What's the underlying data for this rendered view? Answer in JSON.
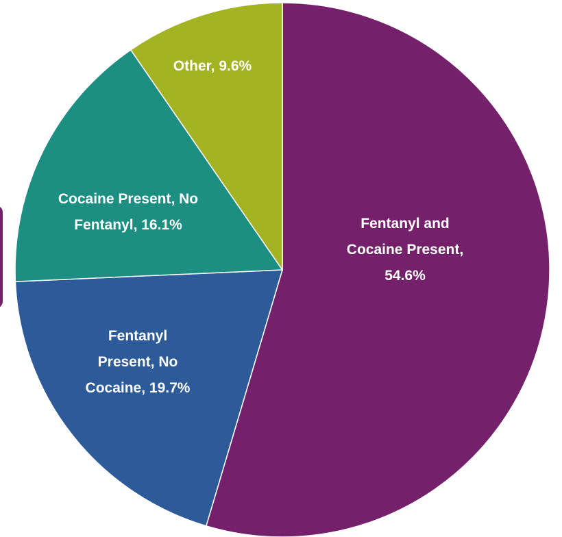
{
  "chart_data": {
    "type": "pie",
    "title": "",
    "start_angle_deg": 0,
    "direction": "clockwise",
    "slices": [
      {
        "label_lines": [
          "Fentanyl and",
          "Cocaine Present,",
          "54.6%"
        ],
        "name": "Fentanyl and Cocaine Present",
        "value": 54.6,
        "color": "#75206a"
      },
      {
        "label_lines": [
          "Fentanyl",
          "Present, No",
          "Cocaine, 19.7%"
        ],
        "name": "Fentanyl Present, No Cocaine",
        "value": 19.7,
        "color": "#2d5b9a"
      },
      {
        "label_lines": [
          "Cocaine Present, No",
          "Fentanyl, 16.1%"
        ],
        "name": "Cocaine Present, No Fentanyl",
        "value": 16.1,
        "color": "#1c8f82"
      },
      {
        "label_lines": [
          "Other, 9.6%"
        ],
        "name": "Other",
        "value": 9.6,
        "color": "#a3b321"
      }
    ]
  },
  "colors": {
    "background": "#ffffff",
    "label_text": "#ffffff",
    "slice_border": "#ffffff"
  }
}
